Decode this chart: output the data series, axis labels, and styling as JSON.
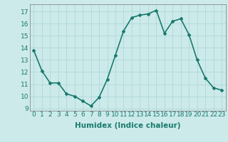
{
  "x": [
    0,
    1,
    2,
    3,
    4,
    5,
    6,
    7,
    8,
    9,
    10,
    11,
    12,
    13,
    14,
    15,
    16,
    17,
    18,
    19,
    20,
    21,
    22,
    23
  ],
  "y": [
    13.8,
    12.1,
    11.1,
    11.1,
    10.2,
    10.0,
    9.6,
    9.2,
    9.9,
    11.4,
    13.4,
    15.4,
    16.5,
    16.7,
    16.8,
    17.1,
    15.2,
    16.2,
    16.4,
    15.1,
    13.0,
    11.5,
    10.7,
    10.5
  ],
  "line_color": "#1a7a6e",
  "marker": "D",
  "marker_size": 2.0,
  "linewidth": 1.2,
  "bg_color": "#cceaea",
  "grid_color": "#b0d8d8",
  "xlabel": "Humidex (Indice chaleur)",
  "xlim": [
    -0.5,
    23.5
  ],
  "ylim": [
    8.8,
    17.6
  ],
  "yticks": [
    9,
    10,
    11,
    12,
    13,
    14,
    15,
    16,
    17
  ],
  "xtick_labels": [
    "0",
    "1",
    "2",
    "3",
    "4",
    "5",
    "6",
    "7",
    "8",
    "9",
    "10",
    "11",
    "12",
    "13",
    "14",
    "15",
    "16",
    "17",
    "18",
    "19",
    "20",
    "21",
    "22",
    "23"
  ],
  "xlabel_fontsize": 7.5,
  "tick_fontsize": 6.5
}
